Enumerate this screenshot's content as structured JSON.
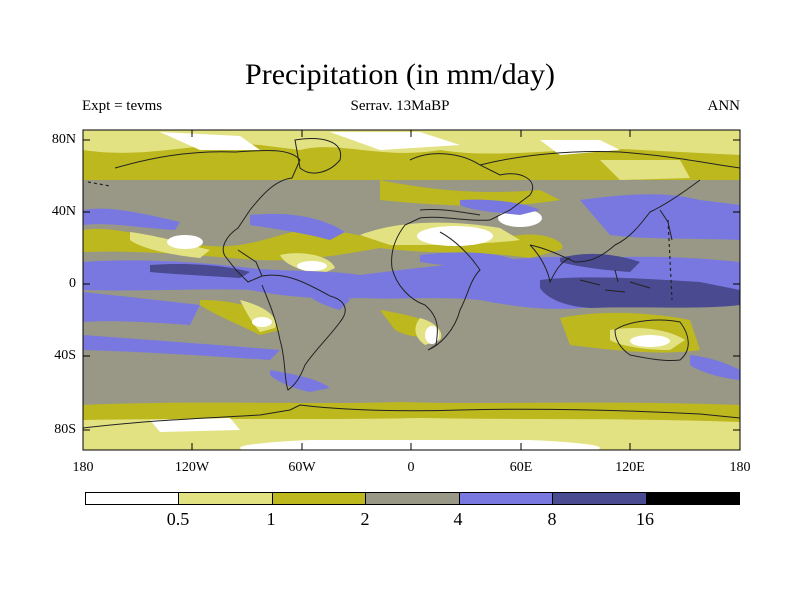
{
  "title": "Precipitation (in mm/day)",
  "subtitle_left": "Expt = tevms",
  "subtitle_center": "Serrav.  13MaBP",
  "subtitle_right": "ANN",
  "y_ticks": [
    "80N",
    "40N",
    "0",
    "40S",
    "80S"
  ],
  "x_ticks": [
    "180",
    "120W",
    "60W",
    "0",
    "60E",
    "120E",
    "180"
  ],
  "colorbar": {
    "labels": [
      "0.5",
      "1",
      "2",
      "4",
      "8",
      "16"
    ],
    "colors": [
      "#ffffff",
      "#e3e282",
      "#bcb81e",
      "#999886",
      "#7878e0",
      "#4a4a90",
      "#000000"
    ]
  }
}
